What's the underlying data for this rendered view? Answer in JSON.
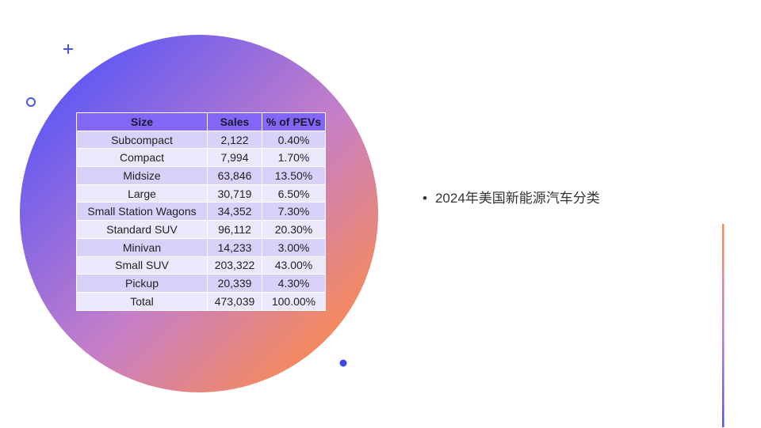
{
  "table": {
    "headers": [
      "Size",
      "Sales",
      "% of PEVs"
    ],
    "rows": [
      [
        "Subcompact",
        "2,122",
        "0.40%"
      ],
      [
        "Compact",
        "7,994",
        "1.70%"
      ],
      [
        "Midsize",
        "63,846",
        "13.50%"
      ],
      [
        "Large",
        "30,719",
        "6.50%"
      ],
      [
        "Small Station Wagons",
        "34,352",
        "7.30%"
      ],
      [
        "Standard SUV",
        "96,112",
        "20.30%"
      ],
      [
        "Minivan",
        "14,233",
        "3.00%"
      ],
      [
        "Small SUV",
        "203,322",
        "43.00%"
      ],
      [
        "Pickup",
        "20,339",
        "4.30%"
      ],
      [
        "Total",
        "473,039",
        "100.00%"
      ]
    ]
  },
  "bullets": [
    "2024年美国新能源汽车分类"
  ]
}
